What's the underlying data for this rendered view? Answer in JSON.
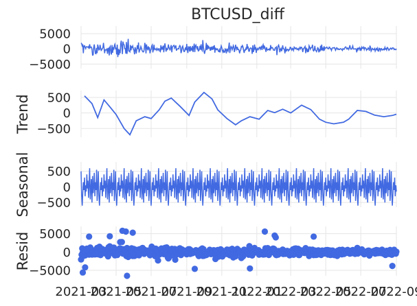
{
  "chart_data": [
    {
      "type": "line",
      "title": "BTCUSD_diff",
      "ylabel": "",
      "ylim": [
        -6500,
        7500
      ],
      "yticks": [
        5000,
        0,
        -5000
      ],
      "ytick_labels": [
        "5000",
        "0",
        "−5000"
      ],
      "color": "#4169e1",
      "x_start": "2021-03-01",
      "x_end": "2022-09-01",
      "amplitude_profile": [
        {
          "x": "2021-03-01",
          "amp": 3200
        },
        {
          "x": "2021-05-15",
          "amp": 4300
        },
        {
          "x": "2021-06-15",
          "amp": 2300
        },
        {
          "x": "2021-10-01",
          "amp": 2800
        },
        {
          "x": "2022-01-15",
          "amp": 2100
        },
        {
          "x": "2022-06-01",
          "amp": 1400
        },
        {
          "x": "2022-09-01",
          "amp": 700
        }
      ]
    },
    {
      "type": "line",
      "title": "",
      "ylabel": "Trend",
      "ylim": [
        -780,
        720
      ],
      "yticks": [
        500,
        0,
        -500
      ],
      "ytick_labels": [
        "500",
        "0",
        "−500"
      ],
      "color": "#4169e1",
      "x": [
        "2021-03-07",
        "2021-03-20",
        "2021-03-30",
        "2021-04-10",
        "2021-04-20",
        "2021-05-01",
        "2021-05-15",
        "2021-05-25",
        "2021-06-05",
        "2021-06-20",
        "2021-07-01",
        "2021-07-15",
        "2021-07-25",
        "2021-08-05",
        "2021-08-20",
        "2021-09-05",
        "2021-09-15",
        "2021-10-01",
        "2021-10-15",
        "2021-10-25",
        "2021-11-10",
        "2021-11-25",
        "2021-12-05",
        "2021-12-20",
        "2022-01-05",
        "2022-01-20",
        "2022-02-01",
        "2022-02-15",
        "2022-03-01",
        "2022-03-20",
        "2022-04-05",
        "2022-04-20",
        "2022-05-01",
        "2022-05-15",
        "2022-06-01",
        "2022-06-10",
        "2022-06-25",
        "2022-07-10",
        "2022-07-25",
        "2022-08-10",
        "2022-08-25",
        "2022-09-01"
      ],
      "values": [
        550,
        300,
        -150,
        420,
        200,
        -50,
        -500,
        -700,
        -250,
        -120,
        -180,
        100,
        380,
        480,
        220,
        -80,
        350,
        660,
        450,
        100,
        -180,
        -380,
        -250,
        -120,
        -200,
        80,
        10,
        120,
        0,
        250,
        110,
        -200,
        -300,
        -350,
        -300,
        -200,
        80,
        50,
        -70,
        -120,
        -80,
        -40
      ]
    },
    {
      "type": "line",
      "title": "",
      "ylabel": "Seasonal",
      "ylim": [
        -650,
        800
      ],
      "yticks": [
        500,
        0,
        -500
      ],
      "ytick_labels": [
        "500",
        "0",
        "−500"
      ],
      "color": "#4169e1",
      "x_start": "2021-03-01",
      "x_end": "2022-09-01",
      "period_days": 30,
      "pattern": [
        500,
        -250,
        -600,
        -200,
        150,
        -100,
        300,
        -300,
        50,
        -150,
        400,
        -50,
        200,
        -350,
        100,
        600,
        -400,
        -100,
        250,
        -500,
        350,
        -200,
        0,
        450,
        -300,
        150,
        -100,
        550,
        -450,
        -50
      ]
    },
    {
      "type": "scatter",
      "title": "",
      "ylabel": "Resid",
      "ylim": [
        -6500,
        7000
      ],
      "yticks": [
        5000,
        0,
        -5000
      ],
      "ytick_labels": [
        "5000",
        "0",
        "−5000"
      ],
      "color": "#4169e1",
      "x_start": "2021-03-01",
      "x_end": "2022-09-01",
      "amplitude_profile": [
        {
          "x": "2021-03-01",
          "amp": 2800
        },
        {
          "x": "2021-05-15",
          "amp": 3300
        },
        {
          "x": "2021-06-15",
          "amp": 2000
        },
        {
          "x": "2021-10-01",
          "amp": 2500
        },
        {
          "x": "2022-01-15",
          "amp": 1800
        },
        {
          "x": "2022-06-01",
          "amp": 1500
        },
        {
          "x": "2022-09-01",
          "amp": 1100
        }
      ],
      "outliers": [
        {
          "x": "2021-03-04",
          "y": -5600
        },
        {
          "x": "2021-03-08",
          "y": -4200
        },
        {
          "x": "2021-03-15",
          "y": 4200
        },
        {
          "x": "2021-04-20",
          "y": 4300
        },
        {
          "x": "2021-05-12",
          "y": 5800
        },
        {
          "x": "2021-05-18",
          "y": 5600
        },
        {
          "x": "2021-05-20",
          "y": -6500
        },
        {
          "x": "2021-05-30",
          "y": 5300
        },
        {
          "x": "2022-01-15",
          "y": 5600
        },
        {
          "x": "2022-02-01",
          "y": 4500
        },
        {
          "x": "2022-02-03",
          "y": 4000
        },
        {
          "x": "2021-09-15",
          "y": -4600
        },
        {
          "x": "2021-12-20",
          "y": -4500
        },
        {
          "x": "2022-08-25",
          "y": -3800
        },
        {
          "x": "2022-04-10",
          "y": 4200
        }
      ]
    }
  ],
  "x_axis": {
    "ticks": [
      "2021-03",
      "2021-05",
      "2021-07",
      "2021-09",
      "2021-11",
      "2022-01",
      "2022-03",
      "2022-05",
      "2022-07",
      "2022-09"
    ]
  }
}
